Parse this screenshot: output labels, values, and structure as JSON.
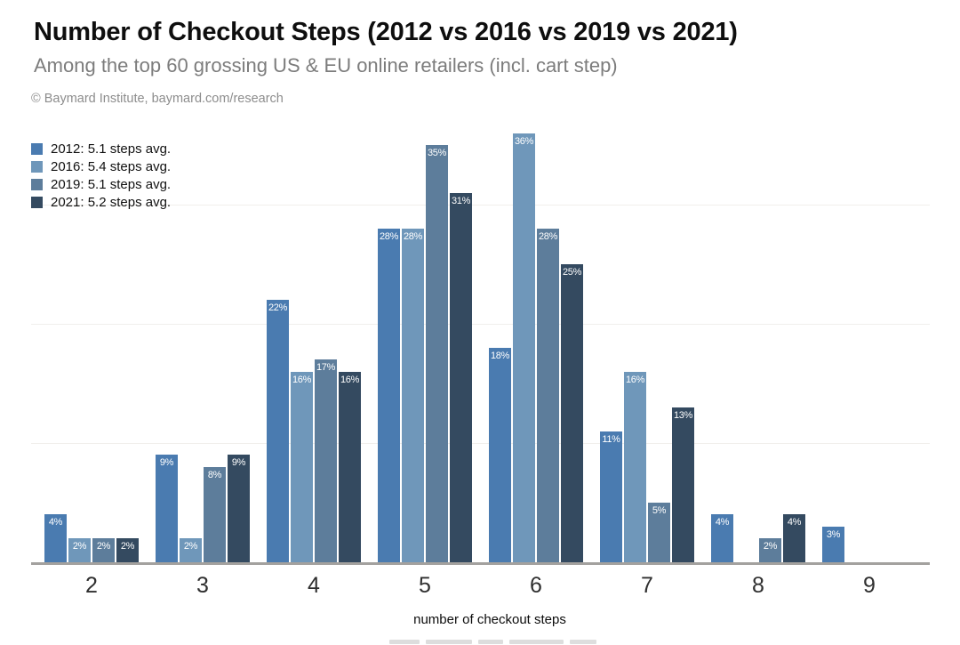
{
  "header": {
    "title": "Number of Checkout Steps (2012 vs 2016 vs 2019 vs 2021)",
    "subtitle": "Among the top 60 grossing US & EU online retailers (incl. cart step)",
    "attribution": "© Baymard Institute, baymard.com/research"
  },
  "chart_data": {
    "type": "bar",
    "title": "Number of Checkout Steps (2012 vs 2016 vs 2019 vs 2021)",
    "subtitle": "Among the top 60 grossing US & EU online retailers (incl. cart step)",
    "categories": [
      "2",
      "3",
      "4",
      "5",
      "6",
      "7",
      "8",
      "9"
    ],
    "series": [
      {
        "name": "2012",
        "legend_label": "2012: 5.1 steps avg.",
        "avg_steps": 5.1,
        "color": "#4a7bb0",
        "values": [
          4,
          9,
          22,
          28,
          18,
          11,
          4,
          3
        ]
      },
      {
        "name": "2016",
        "legend_label": "2016: 5.4 steps avg.",
        "avg_steps": 5.4,
        "color": "#6f97ba",
        "values": [
          2,
          2,
          16,
          28,
          36,
          16,
          0,
          0
        ]
      },
      {
        "name": "2019",
        "legend_label": "2019: 5.1 steps avg.",
        "avg_steps": 5.1,
        "color": "#5d7d9b",
        "values": [
          2,
          8,
          17,
          35,
          28,
          5,
          2,
          0
        ]
      },
      {
        "name": "2021",
        "legend_label": "2021: 5.2 steps avg.",
        "avg_steps": 5.2,
        "color": "#344a60",
        "values": [
          2,
          9,
          16,
          31,
          25,
          13,
          4,
          0
        ]
      }
    ],
    "xlabel": "number of checkout steps",
    "ylabel": "",
    "value_label_format": "{v}%",
    "unit": "percent",
    "ylim": [
      0,
      37.5
    ],
    "gridlines_percent": [
      10,
      20,
      30
    ],
    "grid": true,
    "legend_position": "top-left",
    "y_axis_tick_labels_visible": false
  }
}
